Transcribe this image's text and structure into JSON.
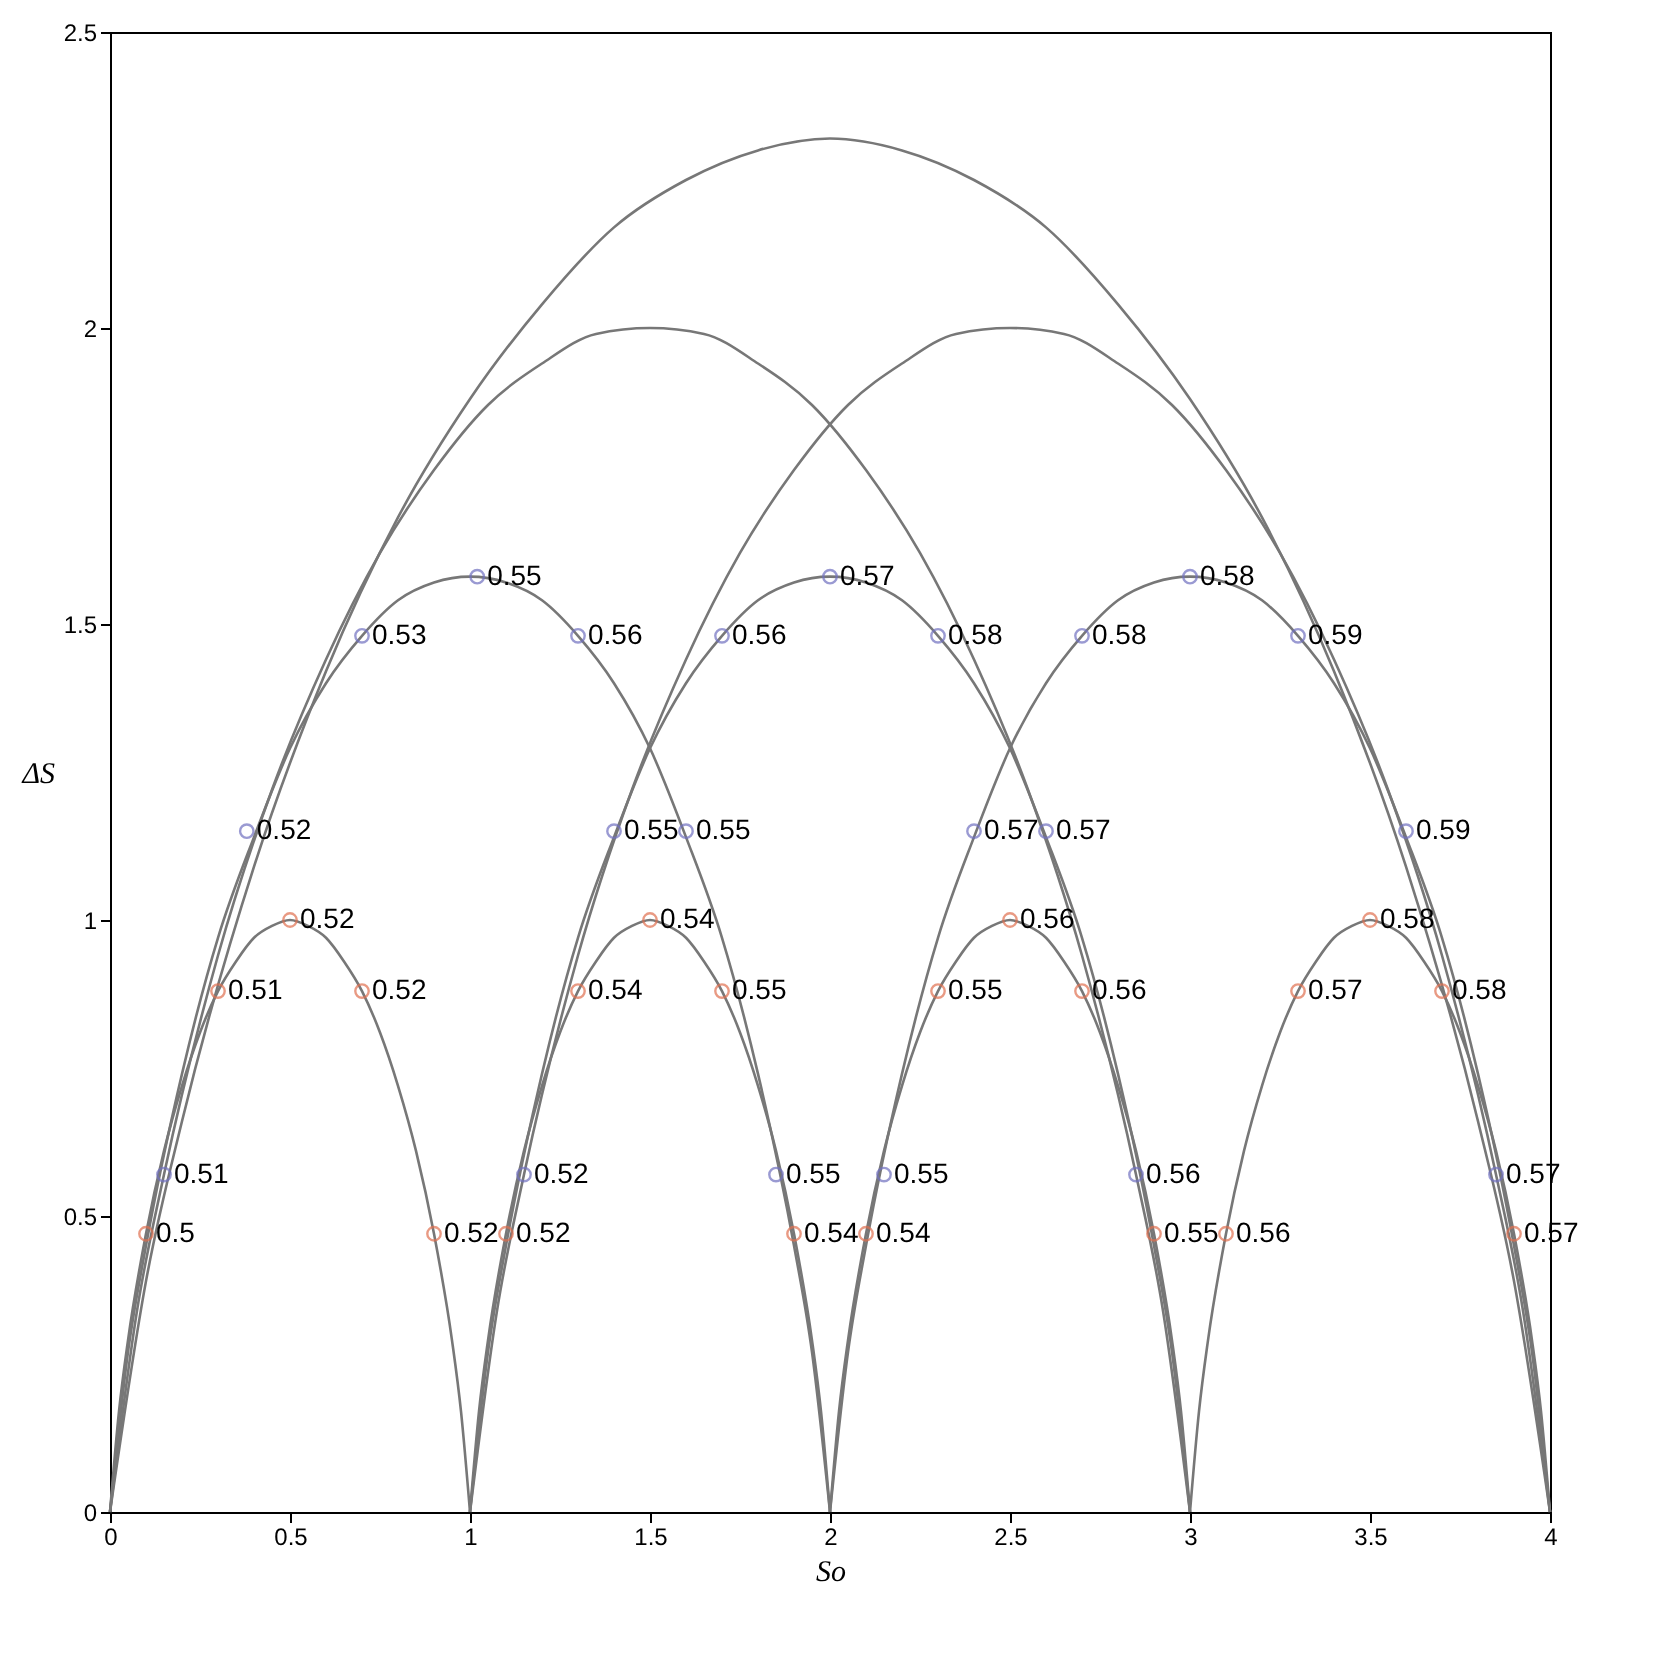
{
  "chart_data": {
    "type": "line",
    "xlabel": "So",
    "ylabel": "ΔS",
    "xlim": [
      0,
      4
    ],
    "xticks": [
      0,
      0.5,
      1,
      1.5,
      2,
      2.5,
      3,
      3.5,
      4
    ],
    "ylim": [
      0,
      2.5
    ],
    "yticks": [
      0,
      0.5,
      1,
      1.5,
      2,
      2.5
    ],
    "grid": false,
    "legend": false,
    "series": [
      {
        "color": "#777777",
        "x": [
          0,
          0.025,
          0.05,
          0.1,
          0.15,
          0.2,
          0.25,
          0.3,
          0.35,
          0.4,
          0.45,
          0.5,
          0.55,
          0.6,
          0.65,
          0.7,
          0.75,
          0.8,
          0.85,
          0.9,
          0.95,
          0.975,
          1
        ],
        "values": [
          0,
          0.17,
          0.29,
          0.47,
          0.61,
          0.72,
          0.81,
          0.88,
          0.93,
          0.97,
          0.99,
          1,
          0.99,
          0.97,
          0.93,
          0.88,
          0.81,
          0.72,
          0.61,
          0.47,
          0.29,
          0.17,
          0
        ]
      },
      {
        "color": "#777777",
        "x": [
          1,
          1.025,
          1.05,
          1.1,
          1.15,
          1.2,
          1.25,
          1.3,
          1.35,
          1.4,
          1.45,
          1.5,
          1.55,
          1.6,
          1.65,
          1.7,
          1.75,
          1.8,
          1.85,
          1.9,
          1.95,
          1.975,
          2
        ],
        "values": [
          0,
          0.17,
          0.29,
          0.47,
          0.61,
          0.72,
          0.81,
          0.88,
          0.93,
          0.97,
          0.99,
          1,
          0.99,
          0.97,
          0.93,
          0.88,
          0.81,
          0.72,
          0.61,
          0.47,
          0.29,
          0.17,
          0
        ]
      },
      {
        "color": "#777777",
        "x": [
          2,
          2.025,
          2.05,
          2.1,
          2.15,
          2.2,
          2.25,
          2.3,
          2.35,
          2.4,
          2.45,
          2.5,
          2.55,
          2.6,
          2.65,
          2.7,
          2.75,
          2.8,
          2.85,
          2.9,
          2.95,
          2.975,
          3
        ],
        "values": [
          0,
          0.17,
          0.29,
          0.47,
          0.61,
          0.72,
          0.81,
          0.88,
          0.93,
          0.97,
          0.99,
          1,
          0.99,
          0.97,
          0.93,
          0.88,
          0.81,
          0.72,
          0.61,
          0.47,
          0.29,
          0.17,
          0
        ]
      },
      {
        "color": "#777777",
        "x": [
          3,
          3.025,
          3.05,
          3.1,
          3.15,
          3.2,
          3.25,
          3.3,
          3.35,
          3.4,
          3.45,
          3.5,
          3.55,
          3.6,
          3.65,
          3.7,
          3.75,
          3.8,
          3.85,
          3.9,
          3.95,
          3.975,
          4
        ],
        "values": [
          0,
          0.17,
          0.29,
          0.47,
          0.61,
          0.72,
          0.81,
          0.88,
          0.93,
          0.97,
          0.99,
          1,
          0.99,
          0.97,
          0.93,
          0.88,
          0.81,
          0.72,
          0.61,
          0.47,
          0.29,
          0.17,
          0
        ]
      },
      {
        "color": "#777777",
        "x": [
          0,
          0.05,
          0.1,
          0.2,
          0.3,
          0.4,
          0.5,
          0.6,
          0.7,
          0.8,
          0.9,
          1,
          1.1,
          1.2,
          1.3,
          1.4,
          1.5,
          1.6,
          1.7,
          1.8,
          1.9,
          1.95,
          2
        ],
        "values": [
          0,
          0.27,
          0.45,
          0.74,
          0.97,
          1.14,
          1.29,
          1.4,
          1.48,
          1.54,
          1.57,
          1.58,
          1.57,
          1.54,
          1.48,
          1.4,
          1.29,
          1.14,
          0.97,
          0.74,
          0.45,
          0.27,
          0
        ]
      },
      {
        "color": "#777777",
        "x": [
          1,
          1.05,
          1.1,
          1.2,
          1.3,
          1.4,
          1.5,
          1.6,
          1.7,
          1.8,
          1.9,
          2,
          2.1,
          2.2,
          2.3,
          2.4,
          2.5,
          2.6,
          2.7,
          2.8,
          2.9,
          2.95,
          3
        ],
        "values": [
          0,
          0.27,
          0.45,
          0.74,
          0.97,
          1.14,
          1.29,
          1.4,
          1.48,
          1.54,
          1.57,
          1.58,
          1.57,
          1.54,
          1.48,
          1.4,
          1.29,
          1.14,
          0.97,
          0.74,
          0.45,
          0.27,
          0
        ]
      },
      {
        "color": "#777777",
        "x": [
          2,
          2.05,
          2.1,
          2.2,
          2.3,
          2.4,
          2.5,
          2.6,
          2.7,
          2.8,
          2.9,
          3,
          3.1,
          3.2,
          3.3,
          3.4,
          3.5,
          3.6,
          3.7,
          3.8,
          3.9,
          3.95,
          4
        ],
        "values": [
          0,
          0.27,
          0.45,
          0.74,
          0.97,
          1.14,
          1.29,
          1.4,
          1.48,
          1.54,
          1.57,
          1.58,
          1.57,
          1.54,
          1.48,
          1.4,
          1.29,
          1.14,
          0.97,
          0.74,
          0.45,
          0.27,
          0
        ]
      },
      {
        "color": "#777777",
        "x": [
          0,
          0.075,
          0.15,
          0.3,
          0.45,
          0.6,
          0.75,
          0.9,
          1.05,
          1.2,
          1.35,
          1.5,
          1.65,
          1.8,
          1.95,
          2.1,
          2.25,
          2.4,
          2.55,
          2.7,
          2.85,
          2.925,
          3
        ],
        "values": [
          0,
          0.34,
          0.57,
          0.94,
          1.22,
          1.44,
          1.62,
          1.76,
          1.87,
          1.94,
          1.99,
          2,
          1.99,
          1.94,
          1.87,
          1.76,
          1.62,
          1.44,
          1.22,
          0.94,
          0.57,
          0.34,
          0
        ]
      },
      {
        "color": "#777777",
        "x": [
          1,
          1.075,
          1.15,
          1.3,
          1.45,
          1.6,
          1.75,
          1.9,
          2.05,
          2.2,
          2.35,
          2.5,
          2.65,
          2.8,
          2.95,
          3.1,
          3.25,
          3.4,
          3.55,
          3.7,
          3.85,
          3.925,
          4
        ],
        "values": [
          0,
          0.34,
          0.57,
          0.94,
          1.22,
          1.44,
          1.62,
          1.76,
          1.87,
          1.94,
          1.99,
          2,
          1.99,
          1.94,
          1.87,
          1.76,
          1.62,
          1.44,
          1.22,
          0.94,
          0.57,
          0.34,
          0
        ]
      },
      {
        "color": "#777777",
        "x": [
          0,
          0.1,
          0.2,
          0.4,
          0.6,
          0.8,
          1,
          1.2,
          1.4,
          1.6,
          1.8,
          2,
          2.2,
          2.4,
          2.6,
          2.8,
          3,
          3.2,
          3.4,
          3.6,
          3.8,
          3.9,
          4
        ],
        "values": [
          0,
          0.39,
          0.66,
          1.09,
          1.42,
          1.68,
          1.88,
          2.04,
          2.17,
          2.25,
          2.3,
          2.32,
          2.3,
          2.25,
          2.17,
          2.04,
          1.88,
          1.68,
          1.42,
          1.09,
          0.66,
          0.39,
          0
        ]
      },
      {
        "type": "scatter",
        "marker": "circle",
        "color": "#e07050",
        "x": [
          0.1,
          0.3,
          0.5,
          0.7,
          0.9,
          1.1,
          1.3,
          1.5,
          1.7,
          1.9,
          2.1,
          2.3,
          2.5,
          2.7,
          2.9,
          3.1,
          3.3,
          3.5,
          3.7,
          3.9
        ],
        "values": [
          0.47,
          0.88,
          1,
          0.88,
          0.47,
          0.47,
          0.88,
          1,
          0.88,
          0.47,
          0.47,
          0.88,
          1,
          0.88,
          0.47,
          0.47,
          0.88,
          1,
          0.88,
          0.47
        ]
      },
      {
        "type": "scatter",
        "marker": "circle",
        "color": "#7070c0",
        "x": [
          0.15,
          0.38,
          0.7,
          1.02,
          1.3,
          1.6,
          1.85,
          1.15,
          1.4,
          1.7,
          2.0,
          2.3,
          2.6,
          2.85,
          2.15,
          2.4,
          2.7,
          3.0,
          3.3,
          3.6,
          3.85
        ],
        "values": [
          0.57,
          1.15,
          1.48,
          1.58,
          1.48,
          1.15,
          0.57,
          0.57,
          1.15,
          1.48,
          1.58,
          1.48,
          1.15,
          0.57,
          0.57,
          1.15,
          1.48,
          1.58,
          1.48,
          1.15,
          0.57
        ]
      }
    ],
    "annotations": [
      {
        "text": "0.5",
        "x": 0.1,
        "y": 0.47
      },
      {
        "text": "0.51",
        "x": 0.3,
        "y": 0.88
      },
      {
        "text": "0.52",
        "x": 0.5,
        "y": 1
      },
      {
        "text": "0.52",
        "x": 0.7,
        "y": 0.88
      },
      {
        "text": "0.52",
        "x": 0.9,
        "y": 0.47
      },
      {
        "text": "0.52",
        "x": 1.1,
        "y": 0.47
      },
      {
        "text": "0.54",
        "x": 1.3,
        "y": 0.88
      },
      {
        "text": "0.54",
        "x": 1.5,
        "y": 1
      },
      {
        "text": "0.55",
        "x": 1.7,
        "y": 0.88
      },
      {
        "text": "0.54",
        "x": 1.9,
        "y": 0.47
      },
      {
        "text": "0.54",
        "x": 2.1,
        "y": 0.47
      },
      {
        "text": "0.55",
        "x": 2.3,
        "y": 0.88
      },
      {
        "text": "0.56",
        "x": 2.5,
        "y": 1
      },
      {
        "text": "0.56",
        "x": 2.7,
        "y": 0.88
      },
      {
        "text": "0.55",
        "x": 2.9,
        "y": 0.47
      },
      {
        "text": "0.56",
        "x": 3.1,
        "y": 0.47
      },
      {
        "text": "0.57",
        "x": 3.3,
        "y": 0.88
      },
      {
        "text": "0.58",
        "x": 3.5,
        "y": 1
      },
      {
        "text": "0.58",
        "x": 3.7,
        "y": 0.88
      },
      {
        "text": "0.57",
        "x": 3.9,
        "y": 0.47
      },
      {
        "text": "0.51",
        "x": 0.15,
        "y": 0.57
      },
      {
        "text": "0.52",
        "x": 0.38,
        "y": 1.15
      },
      {
        "text": "0.53",
        "x": 0.7,
        "y": 1.48
      },
      {
        "text": "0.55",
        "x": 1.02,
        "y": 1.58
      },
      {
        "text": "0.56",
        "x": 1.3,
        "y": 1.48
      },
      {
        "text": "0.55",
        "x": 1.6,
        "y": 1.15
      },
      {
        "text": "0.55",
        "x": 1.85,
        "y": 0.57
      },
      {
        "text": "0.52",
        "x": 1.15,
        "y": 0.57
      },
      {
        "text": "0.55",
        "x": 1.4,
        "y": 1.15
      },
      {
        "text": "0.56",
        "x": 1.7,
        "y": 1.48
      },
      {
        "text": "0.57",
        "x": 2.0,
        "y": 1.58
      },
      {
        "text": "0.58",
        "x": 2.3,
        "y": 1.48
      },
      {
        "text": "0.57",
        "x": 2.6,
        "y": 1.15
      },
      {
        "text": "0.56",
        "x": 2.85,
        "y": 0.57
      },
      {
        "text": "0.55",
        "x": 2.15,
        "y": 0.57
      },
      {
        "text": "0.57",
        "x": 2.4,
        "y": 1.15
      },
      {
        "text": "0.58",
        "x": 2.7,
        "y": 1.48
      },
      {
        "text": "0.58",
        "x": 3.0,
        "y": 1.58
      },
      {
        "text": "0.59",
        "x": 3.3,
        "y": 1.48
      },
      {
        "text": "0.59",
        "x": 3.6,
        "y": 1.15
      },
      {
        "text": "0.57",
        "x": 3.85,
        "y": 0.57
      }
    ]
  }
}
